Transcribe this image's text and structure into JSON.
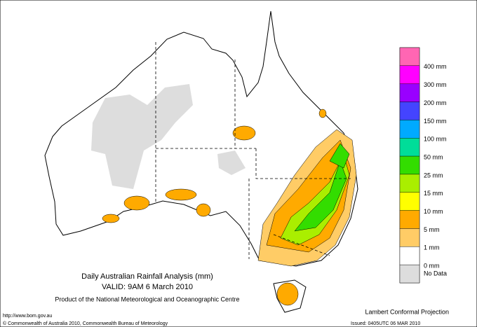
{
  "header": {
    "title": "Daily Australian Rainfall Analysis (mm)",
    "valid": "VALID: 9AM  6 March 2010",
    "product": "Product of the National Meteorological and Oceanographic Centre"
  },
  "projection": "Lambert Conformal Projection",
  "footer": {
    "url": "http://www.bom.gov.au",
    "copyright": "© Commonwealth of Australia 2010, Commonwealth Bureau of Meteorology",
    "issued": "Issued: 0405UTC 06 MAR 2010"
  },
  "legend": {
    "boxes": [
      "#ff66b3",
      "#ff00ff",
      "#9900ff",
      "#4444ff",
      "#00aaff",
      "#00dd99",
      "#33dd00",
      "#aaee00",
      "#ffff00",
      "#ffaa00",
      "#ffcc66",
      "#ffffff",
      "#dddddd"
    ],
    "labels": [
      "400 mm",
      "300 mm",
      "200 mm",
      "150 mm",
      "100 mm",
      "50 mm",
      "25 mm",
      "15 mm",
      "10 mm",
      "5 mm",
      "1 mm",
      "0 mm",
      "No Data"
    ]
  }
}
